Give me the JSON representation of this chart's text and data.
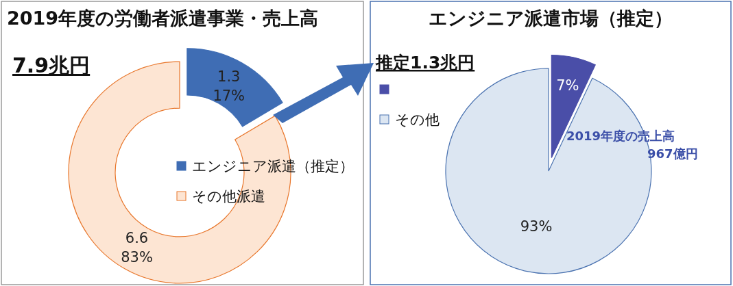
{
  "chart_data": [
    {
      "type": "donut",
      "title": "2019年度の労働者派遣事業・売上高",
      "subtitle": "7.9兆円",
      "categories": [
        "エンジニア派遣（推定）",
        "その他派遣"
      ],
      "values": [
        1.3,
        6.6
      ],
      "value_labels": [
        "1.3\n17%",
        "6.6\n83%"
      ],
      "colors": [
        "#3f6db4",
        "#fde5d3"
      ],
      "legend": "right"
    },
    {
      "type": "pie",
      "title": "エンジニア派遣市場（推定）",
      "subtitle": "推定1.3兆円",
      "categories": [
        null,
        "その他"
      ],
      "values": [
        7,
        93
      ],
      "value_labels": [
        "7%",
        "93%"
      ],
      "colors": [
        "#4a4ea8",
        "#dce6f2"
      ],
      "legend": "top left",
      "annotations": [
        "2019年度の売上高\n967億円"
      ]
    }
  ]
}
